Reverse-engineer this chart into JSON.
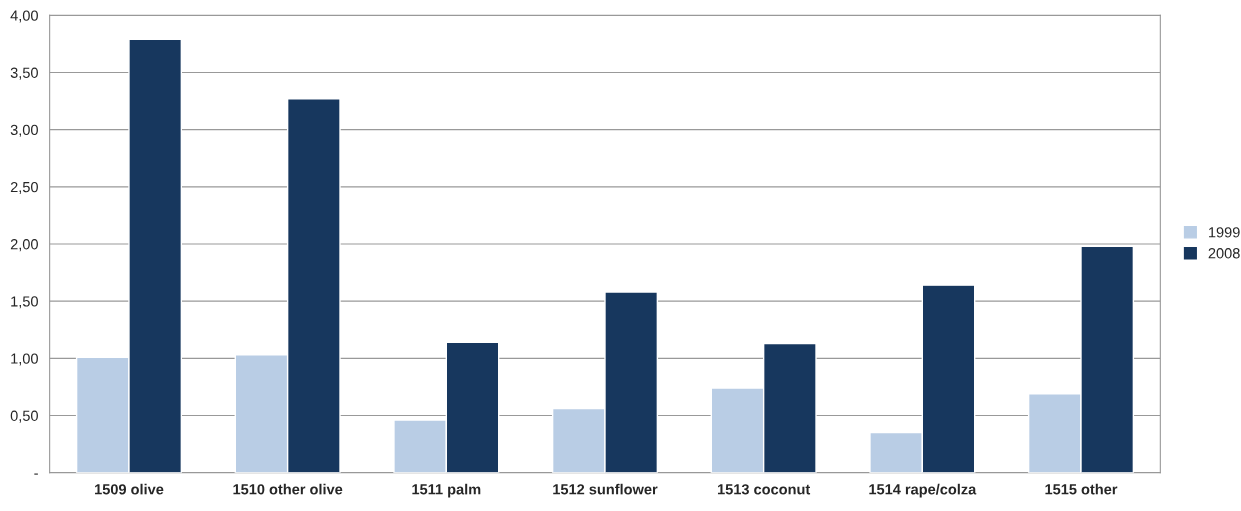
{
  "chart_data": {
    "type": "bar",
    "categories": [
      "1509 olive",
      "1510 other olive",
      "1511 palm",
      "1512 sunflower",
      "1513 coconut",
      "1514 rape/colza",
      "1515 other"
    ],
    "series": [
      {
        "name": "1999",
        "color": "#b9cde5",
        "values": [
          1.01,
          1.03,
          0.46,
          0.56,
          0.74,
          0.35,
          0.69
        ]
      },
      {
        "name": "2008",
        "color": "#17375e",
        "values": [
          3.79,
          3.27,
          1.14,
          1.58,
          1.13,
          1.64,
          1.98
        ]
      }
    ],
    "ylim": [
      0,
      4
    ],
    "yticks": [
      {
        "value": 0,
        "label": "-"
      },
      {
        "value": 0.5,
        "label": "0,50"
      },
      {
        "value": 1,
        "label": "1,00"
      },
      {
        "value": 1.5,
        "label": "1,50"
      },
      {
        "value": 2,
        "label": "2,00"
      },
      {
        "value": 2.5,
        "label": "2,50"
      },
      {
        "value": 3,
        "label": "3,00"
      },
      {
        "value": 3.5,
        "label": "3,50"
      },
      {
        "value": 4,
        "label": "4,00"
      }
    ],
    "grid": "y",
    "legend": "right"
  }
}
